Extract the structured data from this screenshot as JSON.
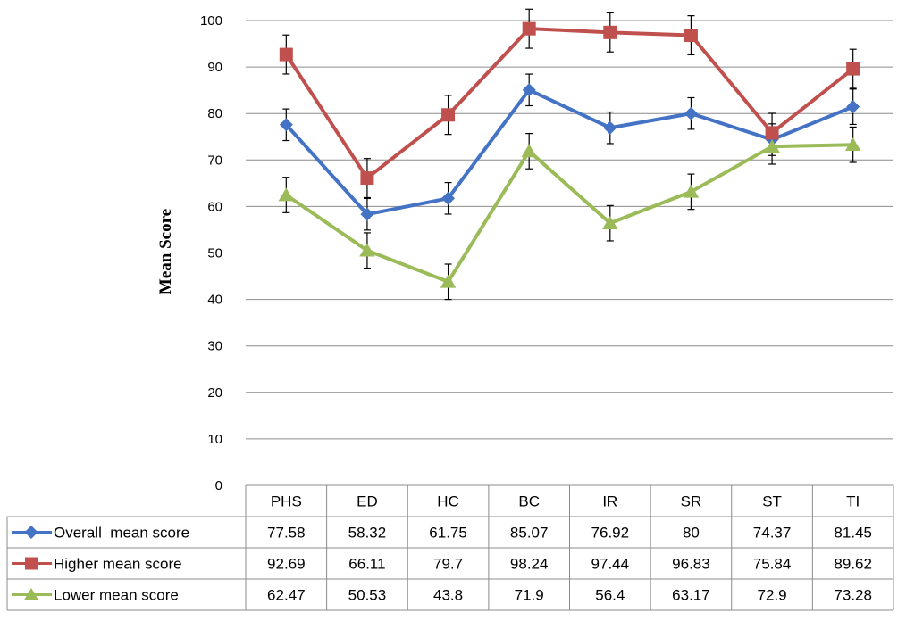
{
  "chart_data": {
    "type": "line",
    "title": "",
    "ylabel": "Mean Score",
    "xlabel": "",
    "ylim": [
      0,
      100
    ],
    "ytick_step": 10,
    "grid": true,
    "legend": "data-table-below",
    "categories": [
      "PHS",
      "ED",
      "HC",
      "BC",
      "IR",
      "SR",
      "ST",
      "TI"
    ],
    "series": [
      {
        "name": "Overall  mean score",
        "marker": "diamond",
        "color": "#4472C4",
        "values": [
          77.58,
          58.32,
          61.75,
          85.07,
          76.92,
          80,
          74.37,
          81.45
        ],
        "error": [
          3.4,
          3.4,
          3.4,
          3.4,
          3.4,
          3.4,
          3.4,
          3.8
        ]
      },
      {
        "name": "Higher mean score",
        "marker": "square",
        "color": "#C0504D",
        "values": [
          92.69,
          66.11,
          79.7,
          98.24,
          97.44,
          96.83,
          75.84,
          89.62
        ],
        "error": [
          4.2,
          4.2,
          4.2,
          4.2,
          4.2,
          4.2,
          4.2,
          4.2
        ]
      },
      {
        "name": "Lower mean score",
        "marker": "triangle",
        "color": "#9BBB59",
        "values": [
          62.47,
          50.53,
          43.8,
          71.9,
          56.4,
          63.17,
          72.9,
          73.28
        ],
        "error": [
          3.8,
          3.8,
          3.8,
          3.8,
          3.8,
          3.8,
          3.8,
          3.8
        ]
      }
    ]
  }
}
